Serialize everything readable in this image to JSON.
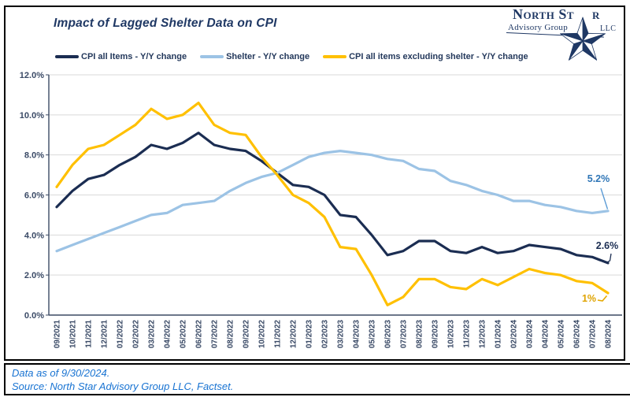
{
  "logo": {
    "name_main": "North St",
    "name_tail": "r",
    "subline": "Advisory Group",
    "suffix": "LLC"
  },
  "header": {
    "title": "Impact of Lagged Shelter Data on CPI"
  },
  "chart_data": {
    "type": "line",
    "title": "Impact of Lagged Shelter Data on CPI",
    "x_labels": [
      "09/2021",
      "10/2021",
      "11/2021",
      "12/2021",
      "01/2022",
      "02/2022",
      "03/2022",
      "04/2022",
      "05/2022",
      "06/2022",
      "07/2022",
      "08/2022",
      "09/2022",
      "10/2022",
      "11/2022",
      "12/2022",
      "01/2023",
      "02/2023",
      "03/2023",
      "04/2023",
      "05/2023",
      "06/2023",
      "07/2023",
      "08/2023",
      "09/2023",
      "10/2023",
      "11/2023",
      "12/2023",
      "01/2024",
      "02/2024",
      "03/2024",
      "04/2024",
      "05/2024",
      "06/2024",
      "07/2024",
      "08/2024"
    ],
    "ylim": [
      0,
      12
    ],
    "ytick_step": 2,
    "ytick_labels": [
      "0.0%",
      "2.0%",
      "4.0%",
      "6.0%",
      "8.0%",
      "10.0%",
      "12.0%"
    ],
    "grid": true,
    "legend_position": "top",
    "series": [
      {
        "name": "CPI all Items - Y/Y change",
        "color": "#1b2d52",
        "values": [
          5.4,
          6.2,
          6.8,
          7.0,
          7.5,
          7.9,
          8.5,
          8.3,
          8.6,
          9.1,
          8.5,
          8.3,
          8.2,
          7.7,
          7.1,
          6.5,
          6.4,
          6.0,
          5.0,
          4.9,
          4.0,
          3.0,
          3.2,
          3.7,
          3.7,
          3.2,
          3.1,
          3.4,
          3.1,
          3.2,
          3.5,
          3.4,
          3.3,
          3.0,
          2.9,
          2.6
        ]
      },
      {
        "name": "Shelter - Y/Y change",
        "color": "#9cc3e5",
        "values": [
          3.2,
          3.5,
          3.8,
          4.1,
          4.4,
          4.7,
          5.0,
          5.1,
          5.5,
          5.6,
          5.7,
          6.2,
          6.6,
          6.9,
          7.1,
          7.5,
          7.9,
          8.1,
          8.2,
          8.1,
          8.0,
          7.8,
          7.7,
          7.3,
          7.2,
          6.7,
          6.5,
          6.2,
          6.0,
          5.7,
          5.7,
          5.5,
          5.4,
          5.2,
          5.1,
          5.2
        ]
      },
      {
        "name": "CPI all items excluding shelter - Y/Y change",
        "color": "#ffc000",
        "values": [
          6.4,
          7.5,
          8.3,
          8.5,
          9.0,
          9.5,
          10.3,
          9.8,
          10.0,
          10.6,
          9.5,
          9.1,
          9.0,
          7.9,
          7.0,
          6.0,
          5.6,
          4.9,
          3.4,
          3.3,
          2.0,
          0.5,
          0.9,
          1.8,
          1.8,
          1.4,
          1.3,
          1.8,
          1.5,
          1.9,
          2.3,
          2.1,
          2.0,
          1.7,
          1.6,
          1.1
        ]
      }
    ],
    "annotations": [
      {
        "text": "5.2%",
        "series": "Shelter - Y/Y change",
        "value": 5.2,
        "color": "#2e75b6"
      },
      {
        "text": "2.6%",
        "series": "CPI all Items - Y/Y change",
        "value": 2.6,
        "color": "#1b2d52"
      },
      {
        "text": "1%",
        "series": "CPI all items excluding shelter - Y/Y change",
        "value": 1.1,
        "color": "#dfa300"
      }
    ]
  },
  "footer": {
    "line1": "Data as of 9/30/2024.",
    "line2": "Source: North Star Advisory Group LLC, Factset."
  }
}
